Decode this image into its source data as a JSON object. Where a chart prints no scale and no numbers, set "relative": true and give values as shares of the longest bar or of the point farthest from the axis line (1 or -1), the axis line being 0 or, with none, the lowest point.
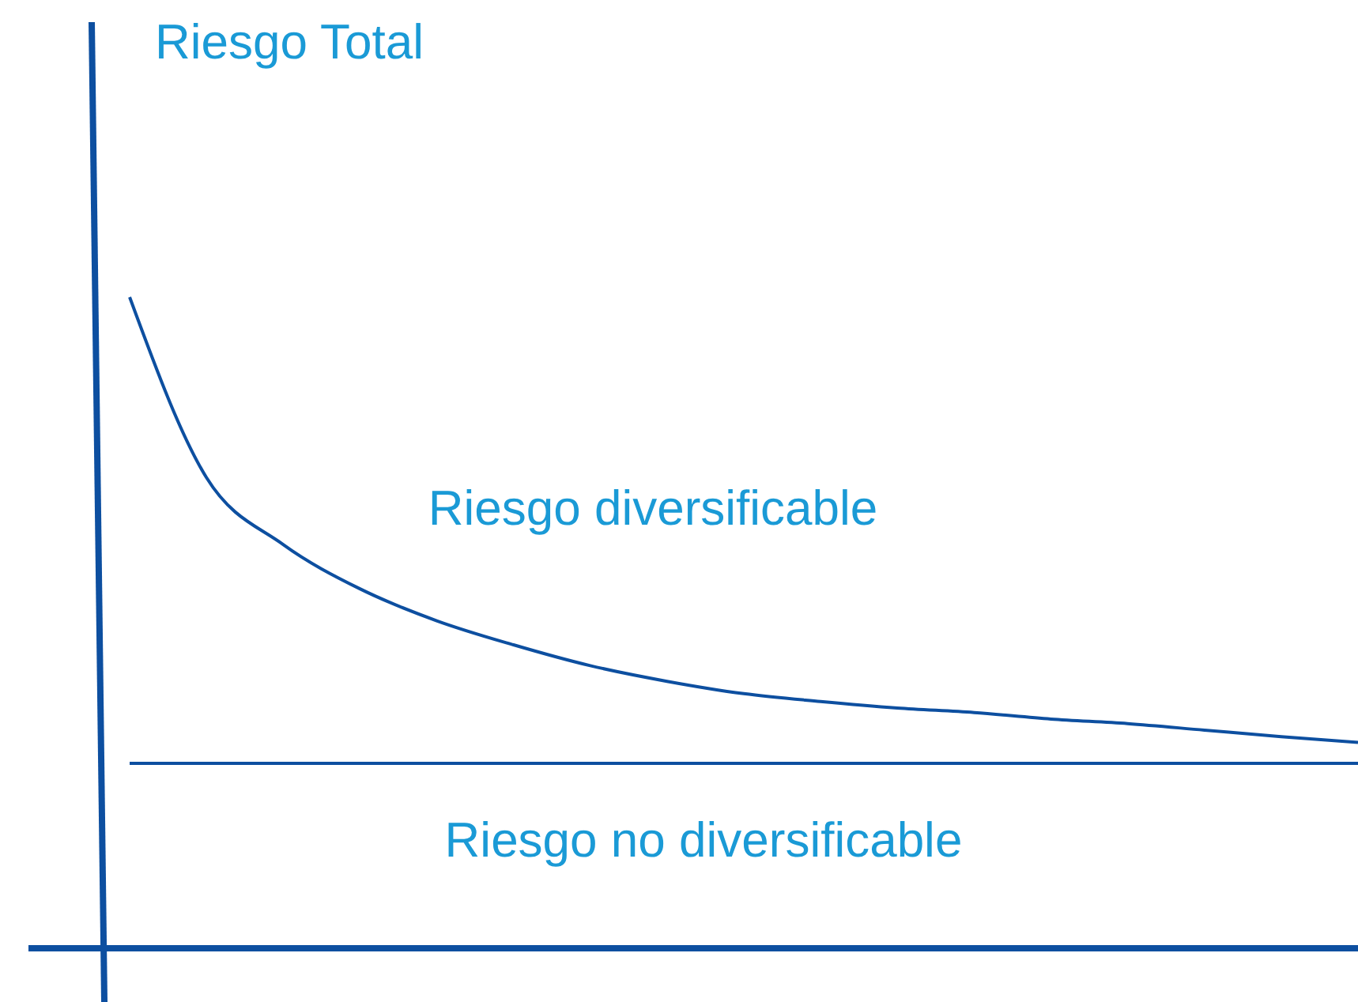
{
  "chart_data": {
    "type": "line",
    "relative": true,
    "ylabel": "Riesgo Total",
    "categories": [
      null,
      null,
      null,
      null,
      null,
      null,
      null,
      null,
      null,
      null,
      null,
      null,
      null,
      null,
      null,
      null,
      null
    ],
    "series": [
      {
        "color": "#0d4fa0",
        "values": [
          1.0,
          0.723,
          0.62,
          0.552,
          0.503,
          0.466,
          0.434,
          0.41,
          0.391,
          0.379,
          0.369,
          0.362,
          0.352,
          0.345,
          0.335,
          0.325,
          0.316
        ]
      },
      {
        "color": "#0d4fa0",
        "values": [
          0.284,
          0.284,
          0.284,
          0.284,
          0.284,
          0.284,
          0.284,
          0.284,
          0.284,
          0.284,
          0.284,
          0.284,
          0.284,
          0.284,
          0.284,
          0.284,
          0.284
        ]
      }
    ],
    "annotations": [
      "Riesgo diversificable",
      "Riesgo no diversificable"
    ],
    "ref_lines": [
      {
        "axis": "y",
        "value": 0,
        "color": "#0d4fa0"
      }
    ]
  }
}
